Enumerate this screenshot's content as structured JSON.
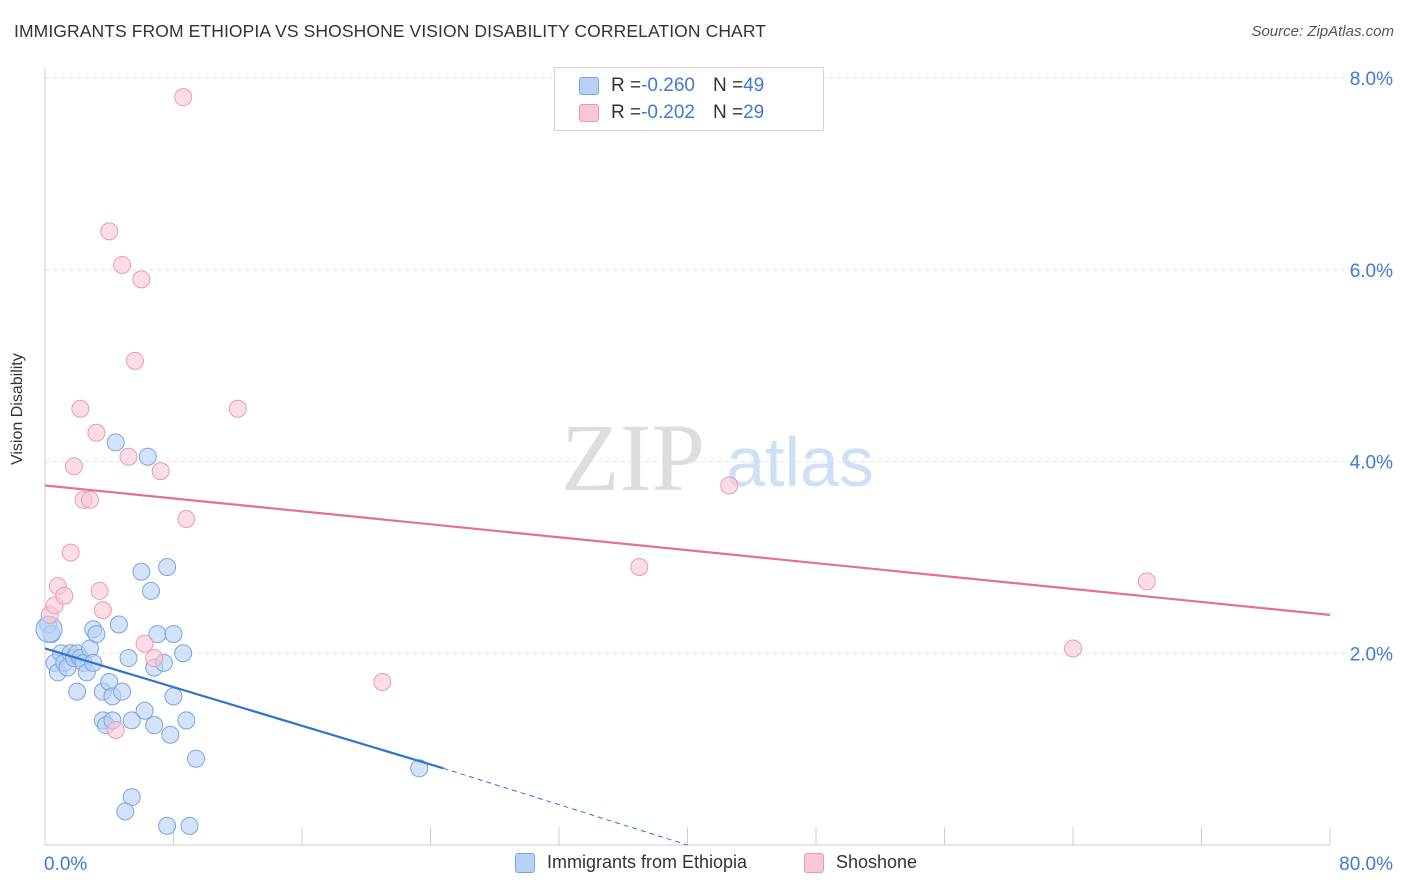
{
  "header": {
    "title": "IMMIGRANTS FROM ETHIOPIA VS SHOSHONE VISION DISABILITY CORRELATION CHART",
    "source": "Source: ZipAtlas.com"
  },
  "watermark": {
    "zip": "ZIP",
    "atlas": "atlas"
  },
  "legend": {
    "rows": [
      {
        "r_label": "R = ",
        "r_value": "-0.260",
        "n_label": "N = ",
        "n_value": "49"
      },
      {
        "r_label": "R = ",
        "r_value": "-0.202",
        "n_label": "N = ",
        "n_value": "29"
      }
    ]
  },
  "colors": {
    "ethiopia_fill": "#b8d1f5",
    "ethiopia_stroke": "#7aa5e0",
    "ethiopia_line": "#2f74d0",
    "shoshone_fill": "#f8c6d5",
    "shoshone_stroke": "#ec9ab3",
    "shoshone_line": "#e2709a",
    "axis_text": "#3d7bd6",
    "grid": "#e3e3e3"
  },
  "chart_data": {
    "type": "scatter",
    "title": "IMMIGRANTS FROM ETHIOPIA VS SHOSHONE VISION DISABILITY CORRELATION CHART",
    "xlabel": "",
    "ylabel": "Vision Disability",
    "xlim": [
      0,
      80
    ],
    "ylim": [
      0,
      8.0
    ],
    "x_tick_labels": [
      "0.0%",
      "80.0%"
    ],
    "y_ticks": [
      2.0,
      4.0,
      6.0,
      8.0
    ],
    "y_tick_labels": [
      "2.0%",
      "4.0%",
      "6.0%",
      "8.0%"
    ],
    "grid": true,
    "series": [
      {
        "name": "Immigrants from Ethiopia",
        "r": -0.26,
        "n": 49,
        "trend": {
          "x0": 0,
          "y0": 2.05,
          "x1": 24.8,
          "y1": 0.8,
          "dash_to_x": 40.0,
          "dash_to_y": 0.0
        },
        "points": [
          [
            0.2,
            2.3
          ],
          [
            0.4,
            2.2
          ],
          [
            0.6,
            1.9
          ],
          [
            0.8,
            1.8
          ],
          [
            1.0,
            2.0
          ],
          [
            1.2,
            1.9
          ],
          [
            1.4,
            1.85
          ],
          [
            1.6,
            2.0
          ],
          [
            1.8,
            1.95
          ],
          [
            2.0,
            2.0
          ],
          [
            2.2,
            1.95
          ],
          [
            2.0,
            1.6
          ],
          [
            2.4,
            1.9
          ],
          [
            2.6,
            1.8
          ],
          [
            2.8,
            2.05
          ],
          [
            3.0,
            2.25
          ],
          [
            3.0,
            1.9
          ],
          [
            3.2,
            2.2
          ],
          [
            3.6,
            1.3
          ],
          [
            3.8,
            1.25
          ],
          [
            3.6,
            1.6
          ],
          [
            4.0,
            1.7
          ],
          [
            4.2,
            1.55
          ],
          [
            4.2,
            1.3
          ],
          [
            4.4,
            4.2
          ],
          [
            4.6,
            2.3
          ],
          [
            4.8,
            1.6
          ],
          [
            5.2,
            1.95
          ],
          [
            5.4,
            1.3
          ],
          [
            6.0,
            2.85
          ],
          [
            6.2,
            1.4
          ],
          [
            6.4,
            4.05
          ],
          [
            6.6,
            2.65
          ],
          [
            6.8,
            1.25
          ],
          [
            6.8,
            1.85
          ],
          [
            7.0,
            2.2
          ],
          [
            7.4,
            1.9
          ],
          [
            7.6,
            2.9
          ],
          [
            7.8,
            1.15
          ],
          [
            8.0,
            1.55
          ],
          [
            8.0,
            2.2
          ],
          [
            8.6,
            2.0
          ],
          [
            8.8,
            1.3
          ],
          [
            9.4,
            0.9
          ],
          [
            5.4,
            0.5
          ],
          [
            5.0,
            0.35
          ],
          [
            9.0,
            0.2
          ],
          [
            23.3,
            0.8
          ],
          [
            7.6,
            0.2
          ]
        ]
      },
      {
        "name": "Shoshone",
        "r": -0.202,
        "n": 29,
        "trend": {
          "x0": 0,
          "y0": 3.75,
          "x1": 80,
          "y1": 2.4
        },
        "points": [
          [
            0.3,
            2.4
          ],
          [
            0.6,
            2.5
          ],
          [
            0.8,
            2.7
          ],
          [
            1.2,
            2.6
          ],
          [
            1.6,
            3.05
          ],
          [
            1.8,
            3.95
          ],
          [
            2.2,
            4.55
          ],
          [
            2.4,
            3.6
          ],
          [
            2.8,
            3.6
          ],
          [
            3.2,
            4.3
          ],
          [
            3.4,
            2.65
          ],
          [
            3.6,
            2.45
          ],
          [
            4.0,
            6.4
          ],
          [
            4.4,
            1.2
          ],
          [
            4.8,
            6.05
          ],
          [
            5.2,
            4.05
          ],
          [
            5.6,
            5.05
          ],
          [
            6.0,
            5.9
          ],
          [
            6.2,
            2.1
          ],
          [
            6.8,
            1.95
          ],
          [
            7.2,
            3.9
          ],
          [
            8.6,
            7.8
          ],
          [
            8.8,
            3.4
          ],
          [
            12.0,
            4.55
          ],
          [
            21.0,
            1.7
          ],
          [
            42.6,
            3.75
          ],
          [
            37.0,
            2.9
          ],
          [
            64.0,
            2.05
          ],
          [
            68.6,
            2.75
          ]
        ]
      }
    ]
  },
  "bottom_legend": {
    "items": [
      "Immigrants from Ethiopia",
      "Shoshone"
    ]
  }
}
